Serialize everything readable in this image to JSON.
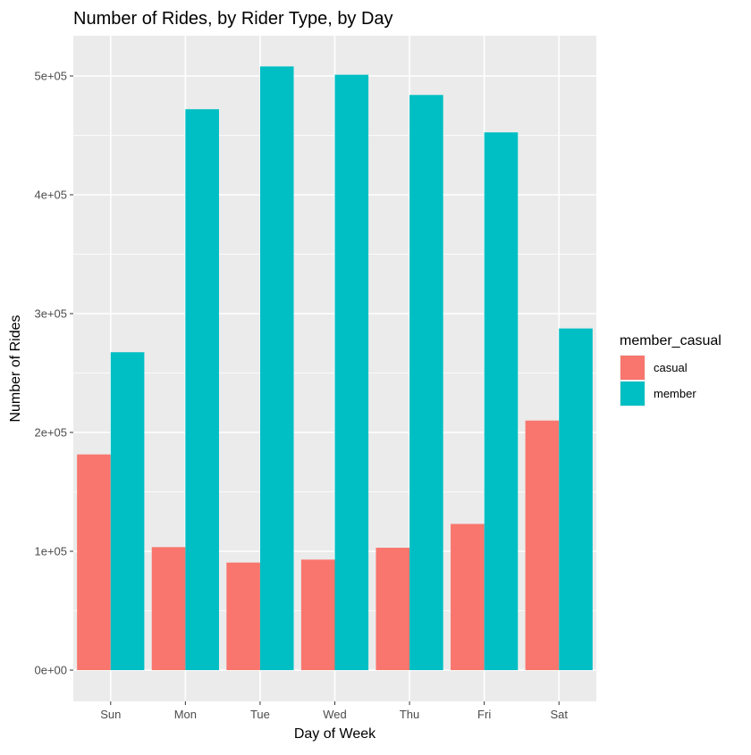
{
  "chart_data": {
    "type": "bar",
    "title": "Number of Rides, by Rider Type, by Day",
    "xlabel": "Day of Week",
    "ylabel": "Number of Rides",
    "categories": [
      "Sun",
      "Mon",
      "Tue",
      "Wed",
      "Thu",
      "Fri",
      "Sat"
    ],
    "series": [
      {
        "name": "casual",
        "color": "#F8766D",
        "values": [
          181500,
          103500,
          90500,
          93000,
          103000,
          123000,
          210000
        ]
      },
      {
        "name": "member",
        "color": "#00BFC4",
        "values": [
          267500,
          472000,
          508000,
          501000,
          484000,
          452500,
          287500
        ]
      }
    ],
    "ylim": [
      0,
      525000
    ],
    "yticks": [
      {
        "value": 0,
        "label": "0e+00"
      },
      {
        "value": 100000,
        "label": "1e+05"
      },
      {
        "value": 200000,
        "label": "2e+05"
      },
      {
        "value": 300000,
        "label": "3e+05"
      },
      {
        "value": 400000,
        "label": "4e+05"
      },
      {
        "value": 500000,
        "label": "5e+05"
      }
    ],
    "grid": true,
    "legend": {
      "title": "member_casual",
      "placement": "right"
    },
    "panel_background": "#EBEBEB"
  }
}
